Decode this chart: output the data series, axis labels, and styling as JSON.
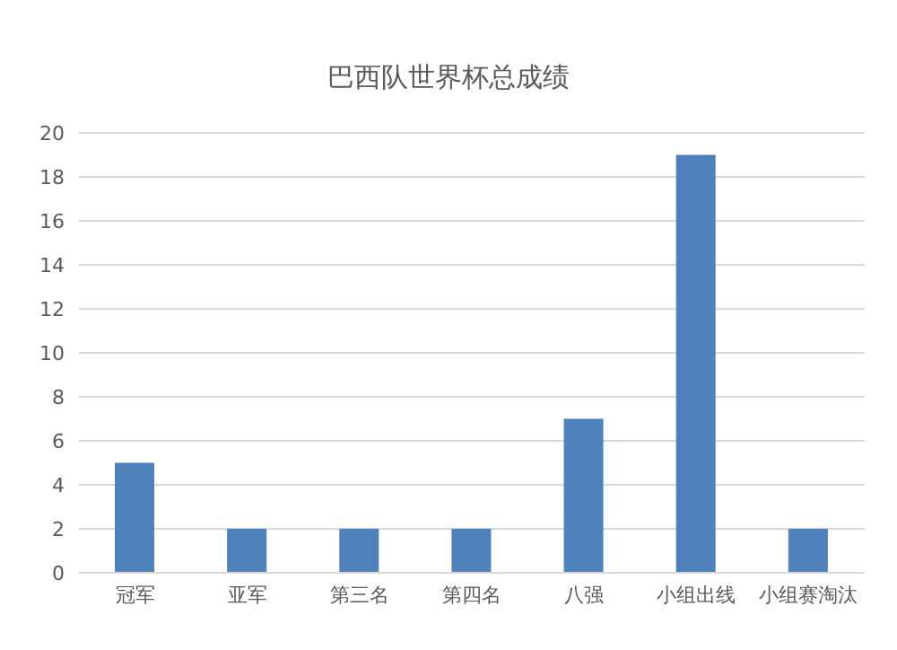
{
  "chart_data": {
    "type": "bar",
    "title": "巴西队世界杯总成绩",
    "categories": [
      "冠军",
      "亚军",
      "第三名",
      "第四名",
      "八强",
      "小组出线",
      "小组赛淘汰"
    ],
    "values": [
      5,
      2,
      2,
      2,
      7,
      19,
      2
    ],
    "color": "#4f81bd",
    "ylim": [
      0,
      20
    ],
    "yticks": [
      0,
      2,
      4,
      6,
      8,
      10,
      12,
      14,
      16,
      18,
      20
    ],
    "grid": "y"
  }
}
